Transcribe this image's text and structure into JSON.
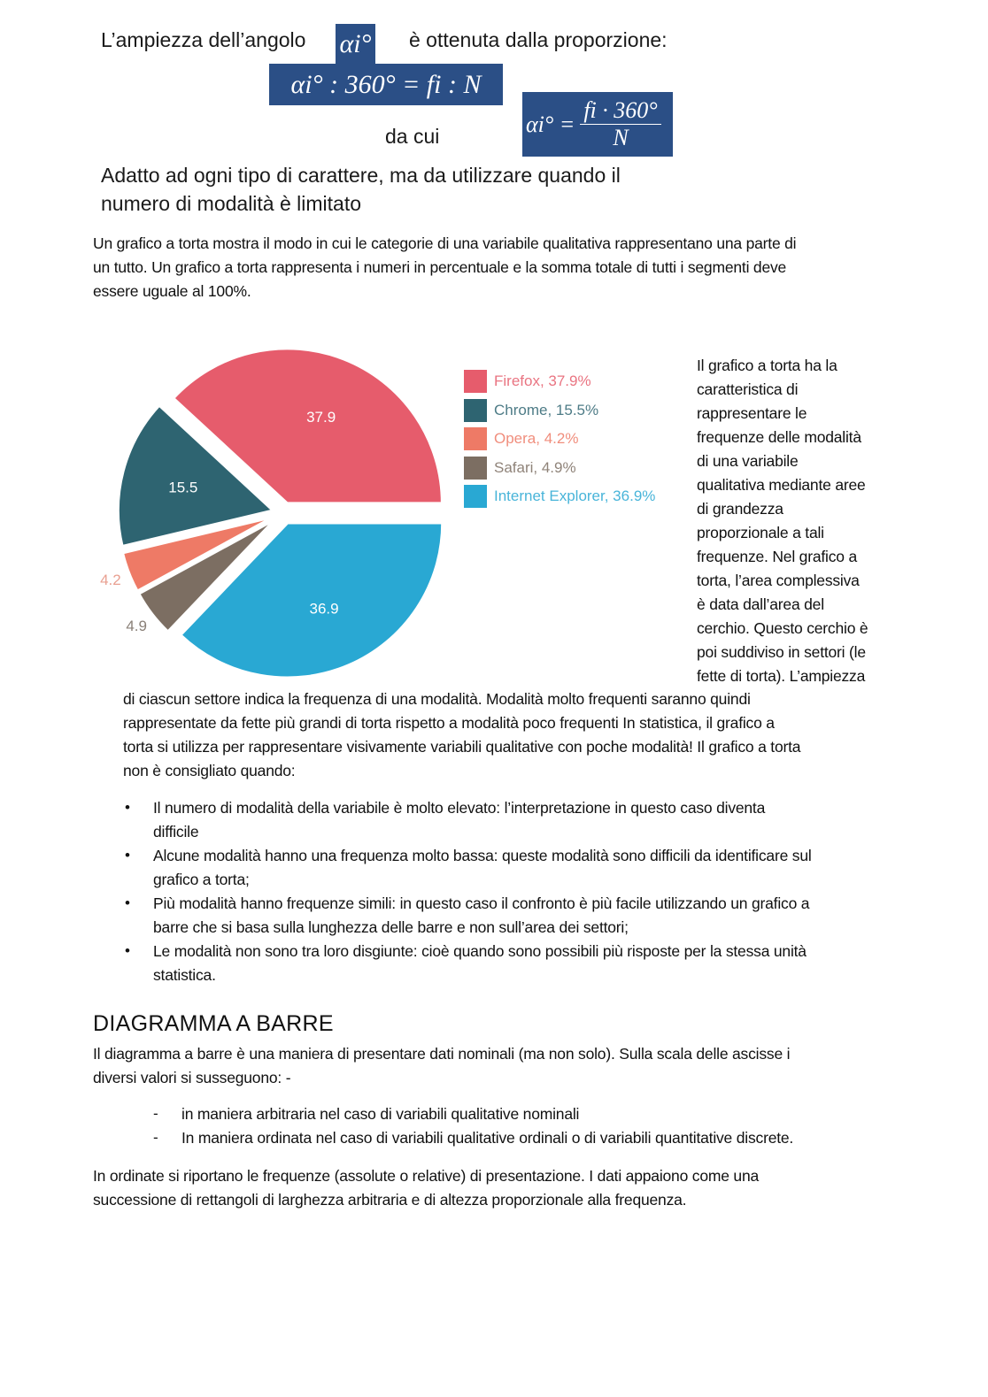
{
  "intro": {
    "line1_pre": "L’ampiezza dell’angolo",
    "line1_post": "è ottenuta dalla proporzione:",
    "formula_alpha": "αi°",
    "formula_proportion": "αi° : 360° = fi : N",
    "da_cui": "da cui",
    "formula_result_lhs": "αi° =",
    "formula_result_num": "fi · 360°",
    "formula_result_den": "N",
    "note_lines": [
      "Adatto ad ogni tipo di carattere, ma da utilizzare quando il",
      "numero di modalità è limitato"
    ]
  },
  "para1": [
    "Un grafico a torta mostra il modo in cui le categorie di una variabile qualitativa rappresentano una parte di",
    "un tutto. Un grafico a torta rappresenta i numeri in percentuale e la somma totale di tutti i segmenti deve",
    "essere uguale al 100%."
  ],
  "side_text": [
    "Il grafico a torta ha la",
    "caratteristica di",
    "rappresentare le",
    "frequenze delle modalità",
    "di una variabile",
    "qualitativa mediante aree",
    "di grandezza",
    "proporzionale a tali",
    "frequenze. Nel grafico a",
    "torta, l’area complessiva",
    "è data dall’area del",
    "cerchio. Questo cerchio è",
    "poi suddiviso in settori (le",
    "fette di torta). L’ampiezza"
  ],
  "para2": [
    "di ciascun settore indica la frequenza di una modalità. Modalità molto frequenti saranno quindi",
    "rappresentate da fette più grandi di torta rispetto a modalità poco frequenti In statistica, il grafico a",
    "torta si utilizza per rappresentare visivamente variabili qualitative con poche modalità!  Il grafico a torta",
    "non è consigliato quando:"
  ],
  "bullets": [
    [
      "Il numero di modalità della variabile è molto elevato: l’interpretazione in questo caso diventa",
      "difficile"
    ],
    [
      "Alcune modalità hanno una frequenza molto bassa: queste modalità sono difficili da identificare sul",
      "grafico a torta;"
    ],
    [
      "Più modalità hanno frequenze simili: in questo caso il confronto è più facile utilizzando un grafico a",
      "barre che si basa sulla lunghezza delle barre e non sull’area dei settori;"
    ],
    [
      "Le modalità non sono tra loro disgiunte: cioè quando sono possibili più risposte per la stessa unità",
      "statistica."
    ]
  ],
  "section_title": "DIAGRAMMA A BARRE",
  "para3": [
    "Il diagramma a barre è una maniera di presentare dati nominali (ma non solo). Sulla scala delle ascisse i",
    "diversi valori si susseguono: -"
  ],
  "dash_items": [
    "in maniera arbitraria nel caso di variabili qualitative nominali",
    "In maniera ordinata nel caso di variabili qualitative ordinali o di variabili quantitative discrete."
  ],
  "para4": [
    " In ordinate si riportano le frequenze (assolute o relative) di presentazione. I dati appaiono come una",
    "successione di rettangoli di larghezza arbitraria e di altezza proporzionale alla frequenza."
  ],
  "chart_data": {
    "type": "pie",
    "categories": [
      "Firefox",
      "Chrome",
      "Opera",
      "Safari",
      "Internet Explorer"
    ],
    "values": [
      37.9,
      15.5,
      4.2,
      4.9,
      36.9
    ],
    "data_labels": [
      "37.9",
      "15.5",
      "4.2",
      "4.9",
      "36.9"
    ],
    "legend": [
      "Firefox, 37.9%",
      "Chrome, 15.5%",
      "Opera, 4.2%",
      "Safari, 4.9%",
      "Internet Explorer, 36.9%"
    ],
    "colors": [
      "#e65c6c",
      "#2e6471",
      "#ee7a66",
      "#7c6e62",
      "#29a8d3"
    ],
    "legend_placement": "right",
    "exploded": true
  }
}
